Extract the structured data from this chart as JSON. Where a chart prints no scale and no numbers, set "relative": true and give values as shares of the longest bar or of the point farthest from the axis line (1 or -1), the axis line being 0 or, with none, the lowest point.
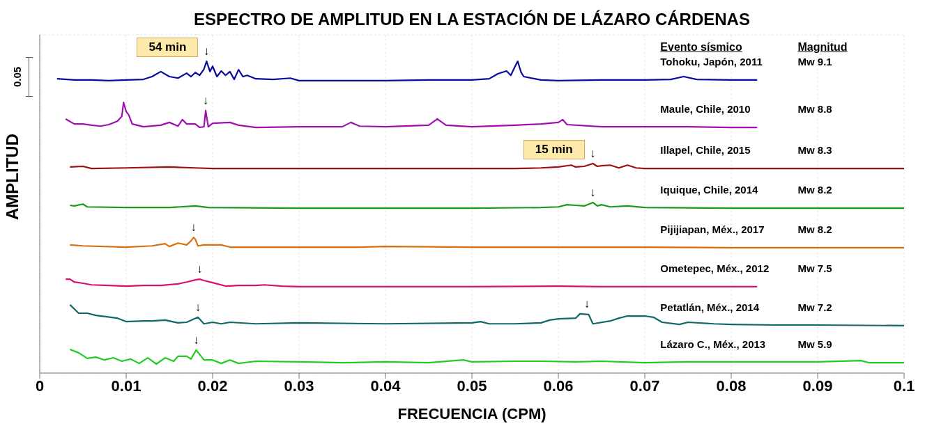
{
  "chart_data": {
    "type": "line",
    "title": "ESPECTRO DE AMPLITUD EN LA ESTACIÓN DE LÁZARO CÁRDENAS",
    "xlabel": "FRECUENCIA (CPM)",
    "ylabel": "AMPLITUD",
    "relative": true,
    "grid": true,
    "xlim": [
      0,
      0.1
    ],
    "xticks": [
      0,
      0.01,
      0.02,
      0.03,
      0.04,
      0.05,
      0.06,
      0.07,
      0.08,
      0.09,
      0.1
    ],
    "series": [
      {
        "name": "Tohoku, Japón, 2011",
        "color": "#0a0aa0",
        "x": [
          0.002,
          0.004,
          0.006,
          0.008,
          0.01,
          0.012,
          0.013,
          0.014,
          0.015,
          0.016,
          0.017,
          0.0175,
          0.018,
          0.0185,
          0.019,
          0.0193,
          0.0197,
          0.02,
          0.0205,
          0.021,
          0.0215,
          0.022,
          0.0225,
          0.023,
          0.0235,
          0.024,
          0.025,
          0.027,
          0.029,
          0.03,
          0.035,
          0.04,
          0.045,
          0.05,
          0.052,
          0.053,
          0.054,
          0.0545,
          0.055,
          0.0553,
          0.0557,
          0.056,
          0.058,
          0.06,
          0.065,
          0.07,
          0.073,
          0.0745,
          0.076,
          0.08,
          0.083
        ],
        "values": [
          0.944,
          0.94,
          0.94,
          0.938,
          0.94,
          0.942,
          0.951,
          0.967,
          0.951,
          0.946,
          0.962,
          0.951,
          0.964,
          0.955,
          0.975,
          1,
          0.967,
          0.984,
          0.951,
          0.969,
          0.955,
          0.967,
          0.942,
          0.973,
          0.951,
          0.955,
          0.944,
          0.942,
          0.946,
          0.938,
          0.938,
          0.938,
          0.94,
          0.94,
          0.944,
          0.96,
          0.969,
          0.955,
          0.984,
          1,
          0.964,
          0.951,
          0.94,
          0.938,
          0.94,
          0.94,
          0.942,
          0.951,
          0.942,
          0.94,
          0.94
        ]
      },
      {
        "name": "Maule, Chile, 2010",
        "color": "#a010b0",
        "x": [
          0.003,
          0.004,
          0.005,
          0.006,
          0.007,
          0.008,
          0.009,
          0.0095,
          0.0097,
          0.01,
          0.0103,
          0.0107,
          0.012,
          0.014,
          0.015,
          0.016,
          0.0165,
          0.017,
          0.018,
          0.0185,
          0.019,
          0.0192,
          0.0195,
          0.02,
          0.022,
          0.023,
          0.025,
          0.03,
          0.035,
          0.036,
          0.037,
          0.04,
          0.045,
          0.046,
          0.047,
          0.05,
          0.055,
          0.058,
          0.06,
          0.0605,
          0.061,
          0.065,
          0.07,
          0.075,
          0.08,
          0.083
        ],
        "values": [
          0.815,
          0.799,
          0.799,
          0.795,
          0.792,
          0.797,
          0.808,
          0.824,
          0.868,
          0.839,
          0.828,
          0.799,
          0.79,
          0.795,
          0.804,
          0.792,
          0.813,
          0.799,
          0.799,
          0.788,
          0.79,
          0.842,
          0.79,
          0.801,
          0.804,
          0.795,
          0.788,
          0.79,
          0.79,
          0.804,
          0.792,
          0.79,
          0.795,
          0.815,
          0.795,
          0.79,
          0.795,
          0.799,
          0.804,
          0.813,
          0.797,
          0.79,
          0.79,
          0.79,
          0.788,
          0.788
        ]
      },
      {
        "name": "Illapel, Chile, 2015",
        "color": "#a00f0f",
        "x": [
          0.0035,
          0.005,
          0.006,
          0.01,
          0.015,
          0.018,
          0.02,
          0.03,
          0.04,
          0.05,
          0.055,
          0.058,
          0.06,
          0.0615,
          0.062,
          0.063,
          0.064,
          0.0645,
          0.065,
          0.066,
          0.067,
          0.068,
          0.069,
          0.07,
          0.08,
          0.09,
          0.1
        ],
        "values": [
          0.661,
          0.663,
          0.656,
          0.658,
          0.661,
          0.658,
          0.656,
          0.656,
          0.656,
          0.656,
          0.656,
          0.658,
          0.661,
          0.667,
          0.661,
          0.663,
          0.672,
          0.663,
          0.665,
          0.667,
          0.658,
          0.667,
          0.658,
          0.656,
          0.656,
          0.656,
          0.656
        ]
      },
      {
        "name": "Iquique, Chile, 2014",
        "color": "#1a9a1a",
        "x": [
          0.0035,
          0.004,
          0.005,
          0.0055,
          0.01,
          0.015,
          0.018,
          0.0195,
          0.03,
          0.04,
          0.05,
          0.058,
          0.06,
          0.061,
          0.062,
          0.063,
          0.064,
          0.0645,
          0.065,
          0.066,
          0.068,
          0.07,
          0.08,
          0.09,
          0.1
        ],
        "values": [
          0.538,
          0.536,
          0.542,
          0.533,
          0.531,
          0.531,
          0.536,
          0.531,
          0.529,
          0.529,
          0.529,
          0.531,
          0.533,
          0.54,
          0.538,
          0.536,
          0.547,
          0.536,
          0.54,
          0.533,
          0.536,
          0.531,
          0.529,
          0.529,
          0.529
        ]
      },
      {
        "name": "Pijijiapan, Méx., 2017",
        "color": "#d87010",
        "x": [
          0.0035,
          0.005,
          0.01,
          0.013,
          0.0145,
          0.015,
          0.016,
          0.017,
          0.0175,
          0.0178,
          0.018,
          0.0183,
          0.019,
          0.021,
          0.022,
          0.025,
          0.03,
          0.037,
          0.04,
          0.05,
          0.06,
          0.07,
          0.08,
          0.09,
          0.1
        ],
        "values": [
          0.411,
          0.408,
          0.404,
          0.408,
          0.415,
          0.406,
          0.417,
          0.411,
          0.424,
          0.435,
          0.429,
          0.408,
          0.411,
          0.411,
          0.404,
          0.404,
          0.404,
          0.404,
          0.406,
          0.404,
          0.404,
          0.404,
          0.402,
          0.402,
          0.402
        ]
      },
      {
        "name": "Ometepec, Méx., 2012",
        "color": "#d81070",
        "x": [
          0.003,
          0.0035,
          0.004,
          0.005,
          0.006,
          0.008,
          0.01,
          0.012,
          0.014,
          0.016,
          0.017,
          0.018,
          0.0185,
          0.019,
          0.02,
          0.0215,
          0.023,
          0.025,
          0.026,
          0.028,
          0.03,
          0.04,
          0.05,
          0.06,
          0.065,
          0.07,
          0.075,
          0.083
        ],
        "values": [
          0.301,
          0.301,
          0.292,
          0.288,
          0.283,
          0.281,
          0.279,
          0.281,
          0.281,
          0.286,
          0.292,
          0.299,
          0.301,
          0.297,
          0.29,
          0.279,
          0.281,
          0.281,
          0.283,
          0.279,
          0.277,
          0.277,
          0.277,
          0.279,
          0.277,
          0.277,
          0.277,
          0.277
        ]
      },
      {
        "name": "Petatlán, Méx., 2014",
        "color": "#106868",
        "x": [
          0.0035,
          0.0045,
          0.0055,
          0.0065,
          0.009,
          0.01,
          0.012,
          0.013,
          0.0145,
          0.016,
          0.017,
          0.0183,
          0.019,
          0.02,
          0.021,
          0.022,
          0.025,
          0.03,
          0.04,
          0.05,
          0.051,
          0.052,
          0.055,
          0.058,
          0.059,
          0.06,
          0.062,
          0.0625,
          0.0635,
          0.064,
          0.066,
          0.067,
          0.068,
          0.07,
          0.071,
          0.072,
          0.074,
          0.075,
          0.078,
          0.08,
          0.085,
          0.09,
          0.1
        ],
        "values": [
          0.219,
          0.192,
          0.192,
          0.185,
          0.176,
          0.165,
          0.167,
          0.167,
          0.17,
          0.161,
          0.163,
          0.179,
          0.158,
          0.163,
          0.158,
          0.163,
          0.158,
          0.161,
          0.158,
          0.161,
          0.165,
          0.158,
          0.158,
          0.161,
          0.17,
          0.174,
          0.176,
          0.19,
          0.188,
          0.158,
          0.167,
          0.176,
          0.183,
          0.183,
          0.179,
          0.163,
          0.156,
          0.163,
          0.158,
          0.156,
          0.154,
          0.154,
          0.152
        ]
      },
      {
        "name": "Lázaro C., Méx., 2013",
        "color": "#22cc22",
        "x": [
          0.0035,
          0.0045,
          0.0055,
          0.0065,
          0.0075,
          0.0085,
          0.0095,
          0.0105,
          0.0115,
          0.0125,
          0.0135,
          0.0145,
          0.0155,
          0.016,
          0.017,
          0.0175,
          0.0181,
          0.019,
          0.02,
          0.021,
          0.022,
          0.023,
          0.025,
          0.03,
          0.035,
          0.04,
          0.045,
          0.049,
          0.05,
          0.055,
          0.058,
          0.062,
          0.065,
          0.07,
          0.075,
          0.08,
          0.085,
          0.09,
          0.095,
          0.096,
          0.1
        ],
        "values": [
          0.076,
          0.065,
          0.047,
          0.051,
          0.042,
          0.049,
          0.038,
          0.045,
          0.031,
          0.049,
          0.029,
          0.049,
          0.038,
          0.054,
          0.054,
          0.045,
          0.074,
          0.042,
          0.042,
          0.031,
          0.042,
          0.031,
          0.038,
          0.036,
          0.033,
          0.036,
          0.033,
          0.042,
          0.036,
          0.038,
          0.038,
          0.036,
          0.038,
          0.033,
          0.036,
          0.036,
          0.036,
          0.036,
          0.04,
          0.033,
          0.033
        ]
      }
    ],
    "annotations": [
      "Evento sísmico",
      "Magnitud",
      "0.05",
      "Mw 9.1",
      "Mw 8.8",
      "Mw 8.3",
      "Mw 8.2",
      "Mw 8.2",
      "Mw 7.5",
      "Mw 7.2",
      "Mw 5.9",
      {
        "text": "54 min",
        "x": 0.0193,
        "y": 1
      },
      {
        "text": "↓",
        "x": 0.0193,
        "y": 1
      },
      {
        "text": "↓",
        "x": 0.0192,
        "y": 0.842
      },
      {
        "text": "15 min",
        "x": 0.064,
        "y": 0.672
      },
      {
        "text": "↓",
        "x": 0.064,
        "y": 0.672
      },
      {
        "text": "↓",
        "x": 0.064,
        "y": 0.547
      },
      {
        "text": "↓",
        "x": 0.0178,
        "y": 0.435
      },
      {
        "text": "↓",
        "x": 0.0185,
        "y": 0.301
      },
      {
        "text": "↓",
        "x": 0.0183,
        "y": 0.179
      },
      {
        "text": "↓",
        "x": 0.0633,
        "y": 0.19
      },
      {
        "text": "↓",
        "x": 0.0181,
        "y": 0.074
      }
    ]
  }
}
